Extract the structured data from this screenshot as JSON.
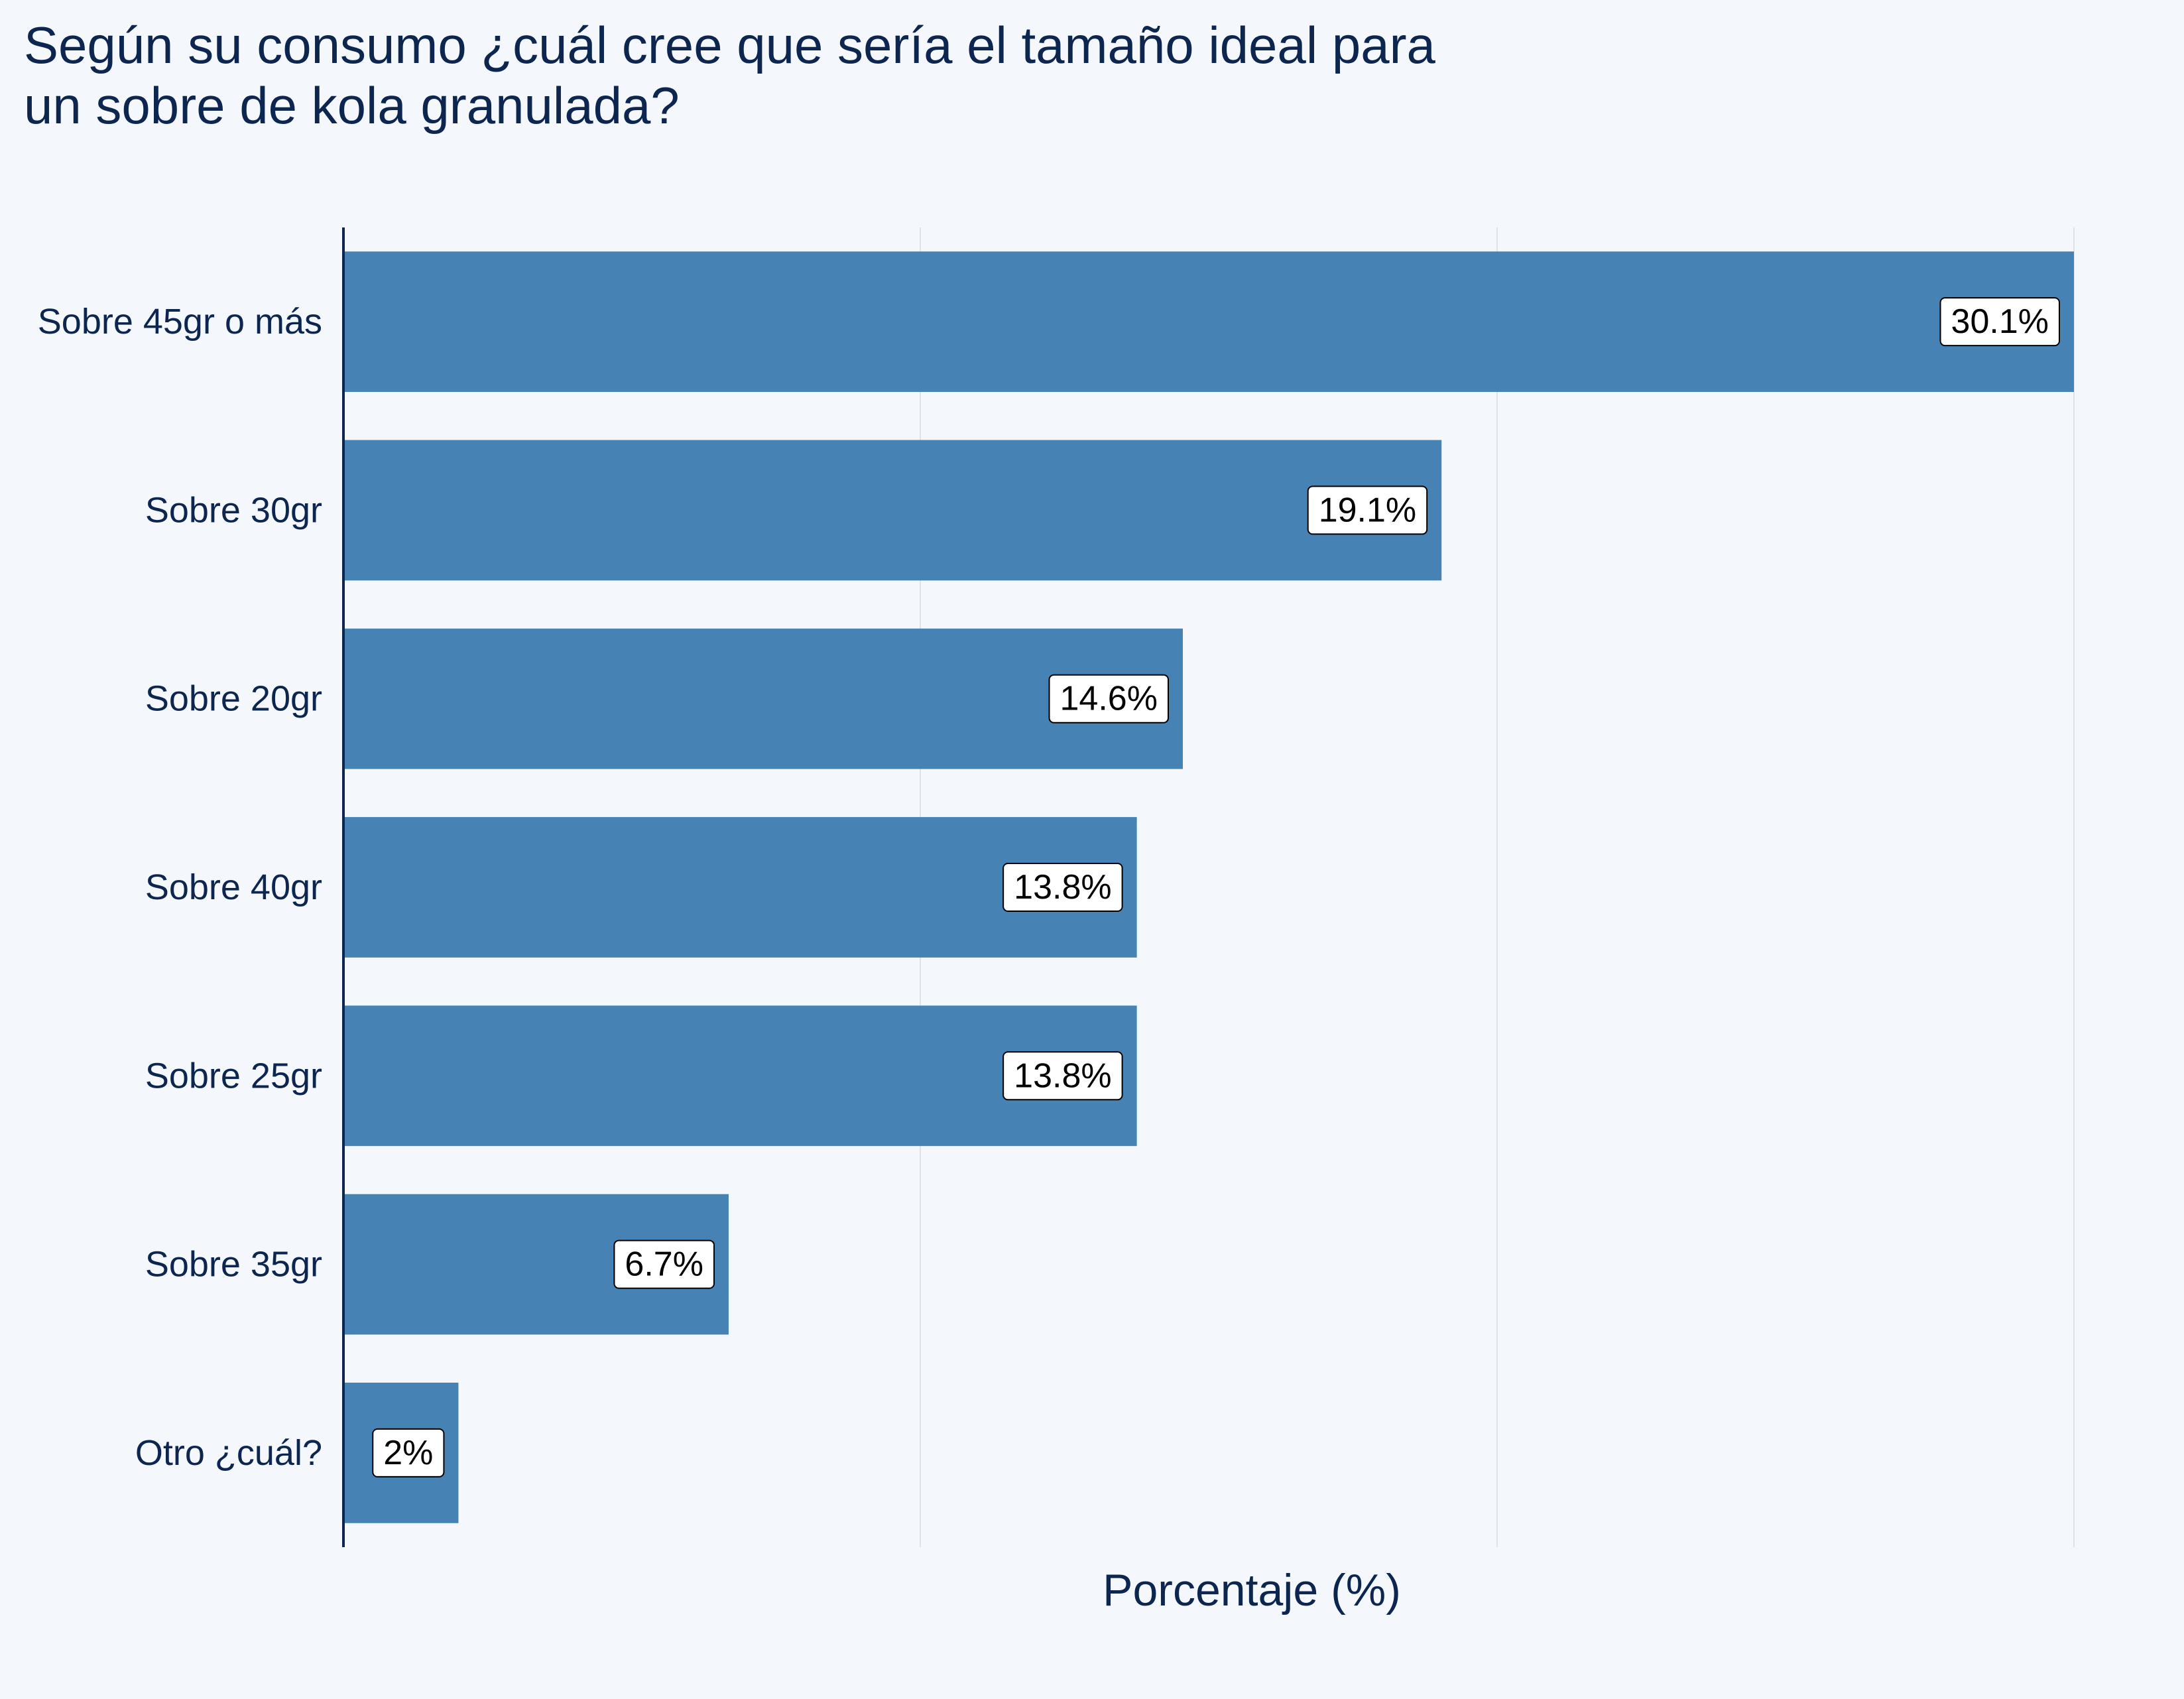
{
  "chart_data": {
    "type": "bar",
    "orientation": "horizontal",
    "title": "Según su consumo ¿cuál cree que sería el tamaño ideal para un sobre de kola granulada?",
    "title_lines": [
      "Según su consumo ¿cuál cree que sería el tamaño ideal para",
      "un sobre de kola granulada?"
    ],
    "xlabel": "Porcentaje (%)",
    "ylabel": "",
    "categories": [
      "Sobre 45gr o más",
      "Sobre 30gr",
      "Sobre 20gr",
      "Sobre 40gr",
      "Sobre 25gr",
      "Sobre 35gr",
      "Otro ¿cuál?"
    ],
    "values": [
      30.1,
      19.1,
      14.6,
      13.8,
      13.8,
      6.7,
      2.0
    ],
    "value_labels": [
      "30.1%",
      "19.1%",
      "14.6%",
      "13.8%",
      "13.8%",
      "6.7%",
      "2%"
    ],
    "xlim": [
      0,
      30.1
    ],
    "grid": "vertical lines only, no tick labels",
    "legend": "none",
    "colors": {
      "bar": "#4682B4",
      "background": "#F4F8FC",
      "text": "#0D2650",
      "grid": "#DFE3E8",
      "axis": "#0D2650",
      "label_box_fill": "#FFFFFF",
      "label_box_stroke": "#000000"
    }
  }
}
